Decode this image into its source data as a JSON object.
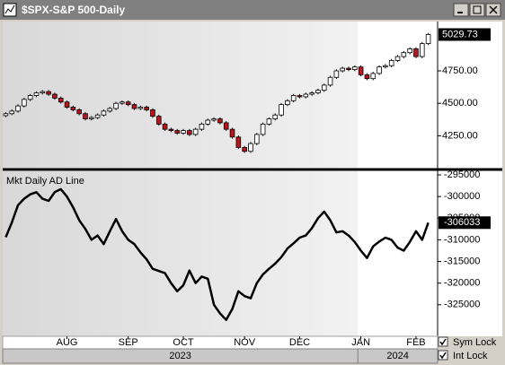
{
  "window": {
    "title": "$SPX-S&P 500-Daily",
    "sym_lock": "Sym Lock",
    "int_lock": "Int Lock"
  },
  "x_axis": {
    "labels": [
      {
        "value": 10,
        "label": "AUG"
      },
      {
        "value": 20,
        "label": "SEP"
      },
      {
        "value": 29,
        "label": "OCT"
      },
      {
        "value": 39,
        "label": "NOV"
      },
      {
        "value": 48,
        "label": "DEC"
      },
      {
        "value": 58,
        "label": "JAN"
      },
      {
        "value": 67,
        "label": "FEB"
      }
    ],
    "years": [
      "2023",
      "2024"
    ]
  },
  "chart_data": [
    {
      "type": "candlestick",
      "up_color": "#ffffff",
      "down_color": "#c0141c",
      "open": [
        4405,
        4420,
        4440,
        4480,
        4530,
        4560,
        4580,
        4590,
        4570,
        4540,
        4510,
        4470,
        4450,
        4420,
        4380,
        4390,
        4410,
        4440,
        4460,
        4500,
        4510,
        4490,
        4460,
        4470,
        4450,
        4400,
        4340,
        4300,
        4290,
        4270,
        4290,
        4260,
        4300,
        4340,
        4370,
        4380,
        4350,
        4300,
        4240,
        4160,
        4130,
        4190,
        4260,
        4340,
        4380,
        4410,
        4490,
        4520,
        4560,
        4550,
        4570,
        4580,
        4600,
        4640,
        4700,
        4750,
        4770,
        4760,
        4780,
        4720,
        4690,
        4730,
        4780,
        4790,
        4830,
        4860,
        4890,
        4920,
        4860,
        4960
      ],
      "high": [
        4432,
        4452,
        4492,
        4542,
        4572,
        4592,
        4602,
        4602,
        4582,
        4552,
        4522,
        4482,
        4462,
        4432,
        4402,
        4422,
        4452,
        4472,
        4512,
        4522,
        4522,
        4502,
        4482,
        4482,
        4462,
        4412,
        4352,
        4312,
        4302,
        4302,
        4302,
        4312,
        4352,
        4382,
        4392,
        4392,
        4362,
        4312,
        4252,
        4172,
        4202,
        4272,
        4352,
        4392,
        4422,
        4502,
        4532,
        4572,
        4572,
        4582,
        4592,
        4612,
        4652,
        4712,
        4762,
        4782,
        4782,
        4792,
        4792,
        4732,
        4742,
        4792,
        4802,
        4842,
        4872,
        4902,
        4932,
        4932,
        4972,
        5042
      ],
      "low": [
        4393,
        4408,
        4428,
        4468,
        4518,
        4548,
        4568,
        4558,
        4528,
        4498,
        4458,
        4438,
        4408,
        4368,
        4368,
        4378,
        4398,
        4428,
        4448,
        4488,
        4478,
        4448,
        4448,
        4438,
        4388,
        4328,
        4288,
        4278,
        4258,
        4258,
        4248,
        4248,
        4288,
        4328,
        4358,
        4338,
        4288,
        4228,
        4148,
        4118,
        4118,
        4178,
        4248,
        4328,
        4368,
        4398,
        4478,
        4508,
        4538,
        4538,
        4558,
        4568,
        4588,
        4628,
        4688,
        4738,
        4748,
        4748,
        4708,
        4678,
        4678,
        4718,
        4768,
        4778,
        4818,
        4848,
        4878,
        4848,
        4848,
        4948
      ],
      "close": [
        4420,
        4440,
        4480,
        4530,
        4560,
        4580,
        4590,
        4570,
        4540,
        4510,
        4470,
        4450,
        4420,
        4380,
        4390,
        4410,
        4440,
        4460,
        4500,
        4510,
        4490,
        4460,
        4470,
        4450,
        4400,
        4340,
        4300,
        4290,
        4270,
        4290,
        4260,
        4300,
        4340,
        4370,
        4380,
        4350,
        4300,
        4240,
        4160,
        4130,
        4190,
        4260,
        4340,
        4380,
        4410,
        4490,
        4520,
        4560,
        4550,
        4570,
        4580,
        4600,
        4640,
        4700,
        4750,
        4770,
        4760,
        4780,
        4720,
        4690,
        4730,
        4780,
        4790,
        4830,
        4860,
        4890,
        4920,
        4860,
        4960,
        5029.73
      ],
      "ylim": [
        3997,
        5130
      ],
      "yticks": [
        {
          "value": 4250,
          "label": "4250.00"
        },
        {
          "value": 4500,
          "label": "4500.00"
        },
        {
          "value": 4750,
          "label": "4750.00"
        }
      ]
    },
    {
      "type": "line",
      "title": "Mkt Daily AD Line",
      "color": "#000000",
      "values": [
        -309400,
        -306000,
        -302000,
        -300500,
        -299500,
        -299000,
        -300500,
        -301000,
        -299000,
        -298300,
        -300000,
        -302500,
        -305500,
        -307500,
        -310000,
        -309000,
        -311000,
        -308000,
        -305200,
        -308000,
        -310000,
        -311000,
        -312900,
        -314500,
        -316700,
        -317200,
        -317700,
        -320000,
        -321900,
        -320500,
        -317100,
        -320000,
        -318500,
        -319000,
        -325000,
        -327000,
        -328500,
        -326000,
        -321900,
        -323000,
        -323500,
        -320000,
        -318000,
        -316700,
        -315500,
        -314000,
        -312000,
        -310800,
        -309500,
        -309000,
        -307300,
        -305000,
        -303500,
        -305500,
        -308300,
        -308000,
        -309000,
        -310500,
        -312500,
        -314200,
        -311500,
        -310400,
        -309500,
        -310000,
        -311800,
        -312500,
        -310500,
        -308000,
        -310000,
        -306033
      ],
      "ylim": [
        -332292,
        -294167
      ],
      "yticks": [
        -295000,
        -300000,
        -305000,
        -310000,
        -315000,
        -320000,
        -325000
      ]
    }
  ]
}
